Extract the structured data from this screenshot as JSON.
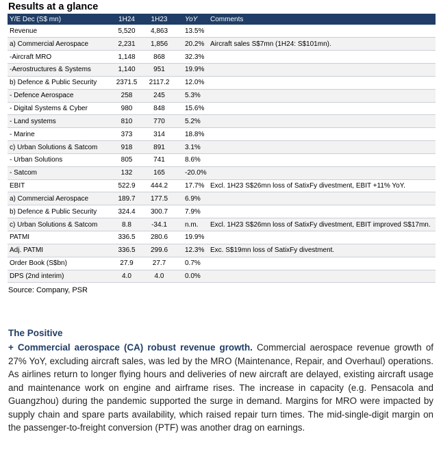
{
  "title": "Results at a glance",
  "table": {
    "headers": [
      "Y/E Dec (S$ mn)",
      "1H24",
      "1H23",
      "YoY",
      "Comments"
    ],
    "rows": [
      [
        "Revenue",
        "5,520",
        "4,863",
        "13.5%",
        ""
      ],
      [
        "a) Commercial Aerospace",
        "2,231",
        "1,856",
        "20.2%",
        "Aircraft sales S$7mn (1H24: S$101mn)."
      ],
      [
        " -Aircraft MRO",
        "1,148",
        "868",
        "32.3%",
        ""
      ],
      [
        " -Aerostructures & Systems",
        "1,140",
        "951",
        "19.9%",
        ""
      ],
      [
        "b) Defence & Public Security",
        "2371.5",
        "2117.2",
        "12.0%",
        ""
      ],
      [
        " - Defence Aerospace",
        "258",
        "245",
        "5.3%",
        ""
      ],
      [
        " - Digital Systems & Cyber",
        "980",
        "848",
        "15.6%",
        ""
      ],
      [
        " - Land systems",
        "810",
        "770",
        "5.2%",
        ""
      ],
      [
        " - Marine",
        "373",
        "314",
        "18.8%",
        ""
      ],
      [
        "c) Urban Solutions & Satcom",
        "918",
        "891",
        "3.1%",
        ""
      ],
      [
        " - Urban Solutions",
        "805",
        "741",
        "8.6%",
        ""
      ],
      [
        " - Satcom",
        "132",
        "165",
        "-20.0%",
        ""
      ],
      [
        "EBIT",
        "522.9",
        "444.2",
        "17.7%",
        "Excl. 1H23 S$26mn loss of SatixFy divestment, EBIT +11% YoY."
      ],
      [
        "a) Commercial Aerospace",
        "189.7",
        "177.5",
        "6.9%",
        ""
      ],
      [
        "b) Defence & Public Security",
        "324.4",
        "300.7",
        "7.9%",
        ""
      ],
      [
        "c) Urban Solutions & Satcom",
        "8.8",
        "-34.1",
        "n.m.",
        "Excl. 1H23 S$26mn loss of SatixFy divestment, EBIT improved S$17mn."
      ],
      [
        "PATMI",
        "336.5",
        "280.6",
        "19.9%",
        ""
      ],
      [
        "Adj. PATMI",
        "336.5",
        "299.6",
        "12.3%",
        "Exc. S$19mn loss of SatixFy divestment."
      ],
      [
        "Order Book (S$bn)",
        "27.9",
        "27.7",
        "0.7%",
        ""
      ],
      [
        "DPS (2nd interim)",
        "4.0",
        "4.0",
        "0.0%",
        ""
      ]
    ]
  },
  "source": "Source: Company, PSR",
  "positive": {
    "heading": "The Positive",
    "lead": "+ Commercial aerospace (CA) robust revenue growth.",
    "body": " Commercial aerospace revenue growth of 27% YoY, excluding aircraft sales, was led by the MRO (Maintenance, Repair, and Overhaul) operations. As airlines return to longer flying hours and deliveries of new aircraft are delayed, existing aircraft usage and maintenance work on engine and airframe rises. The increase in capacity (e.g. Pensacola and Guangzhou) during the pandemic supported the surge in demand. Margins for MRO were impacted by supply chain and spare parts availability, which raised repair turn times. The mid-single-digit margin on the passenger-to-freight conversion (PTF) was another drag on earnings."
  }
}
